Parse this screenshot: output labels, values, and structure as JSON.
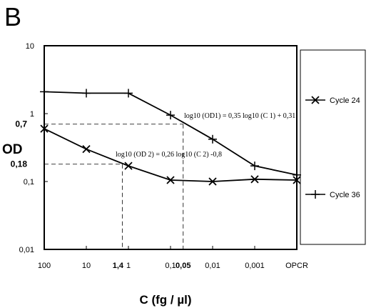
{
  "panel_label": "B",
  "chart_data": {
    "type": "line",
    "x_axis": {
      "label": "C (fg / µl)",
      "tick_labels": [
        "100",
        "10",
        "1",
        "0,1",
        "0,01",
        "0,001",
        "OPCR"
      ],
      "extra_ticks": [
        {
          "label": "1,4",
          "value": 1.4
        },
        {
          "label": "0,05",
          "value": 0.05
        }
      ]
    },
    "y_axis": {
      "label": "OD",
      "scale": "log",
      "ylim": [
        0.01,
        10
      ],
      "tick_labels": [
        "10",
        "1",
        "0,1",
        "0,01"
      ],
      "extra_ticks": [
        {
          "label": "0,7",
          "value": 0.7
        },
        {
          "label": "0,18",
          "value": 0.18
        }
      ]
    },
    "categories": [
      "100",
      "10",
      "1",
      "0,1",
      "0,01",
      "0,001",
      "OPCR"
    ],
    "series": [
      {
        "name": "Cycle 24",
        "marker": "x",
        "values": [
          0.6,
          0.3,
          0.17,
          0.105,
          0.1,
          0.108,
          0.105
        ]
      },
      {
        "name": "Cycle 36",
        "marker": "+",
        "values": [
          2.1,
          2.0,
          2.0,
          0.95,
          0.42,
          0.17,
          0.125
        ]
      }
    ],
    "annotations": [
      {
        "text": "log10 (OD1) = 0,35 log10 (C 1) + 0,31"
      },
      {
        "text": "log10 (OD 2) = 0,26 log10 (C 2) -0,8"
      }
    ],
    "reference_lines": [
      {
        "y": 0.7,
        "x": 0.05
      },
      {
        "y": 0.18,
        "x": 1.4
      }
    ],
    "legend_position": "right",
    "grid": false
  }
}
